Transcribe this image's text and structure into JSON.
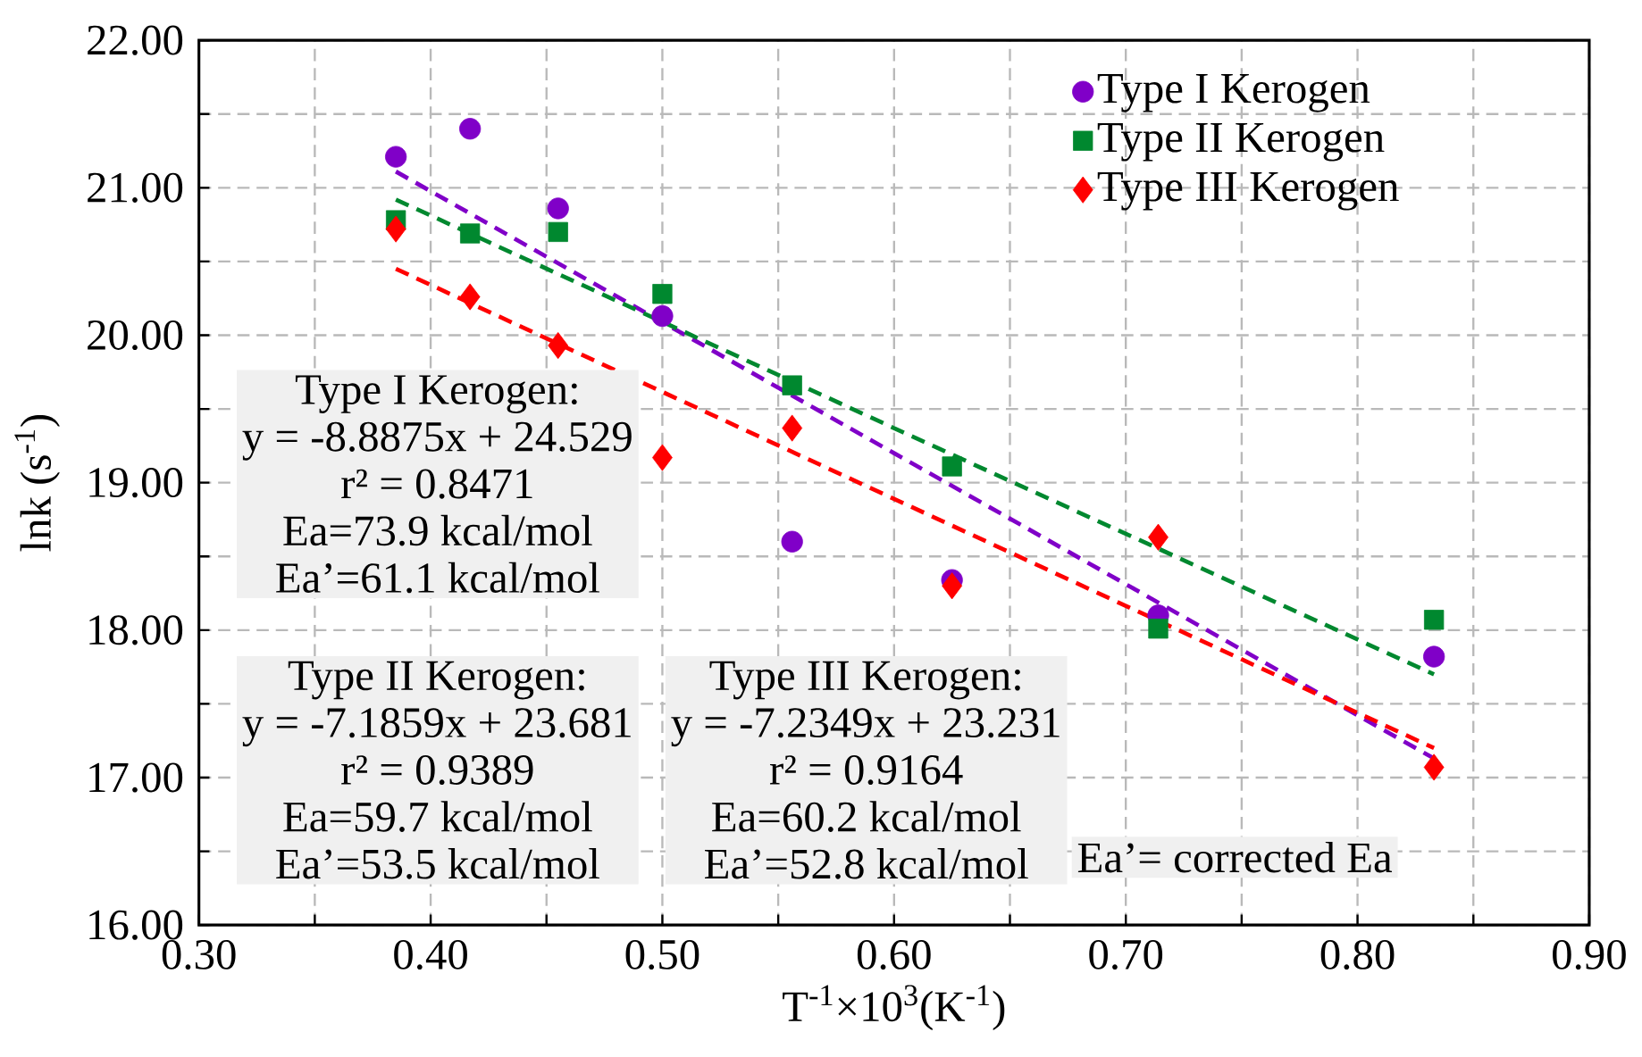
{
  "chart_data": {
    "type": "scatter",
    "xlabel": "T$^{-1}$×10$^{3}$(K$^{-1}$)",
    "ylabel": "lnk (s$^{-1}$)",
    "xlim": [
      0.3,
      0.9
    ],
    "ylim": [
      16,
      22
    ],
    "xticks": [
      {
        "value": 0.3,
        "label": "0.30"
      },
      {
        "value": 0.35,
        "label": null
      },
      {
        "value": 0.4,
        "label": "0.40"
      },
      {
        "value": 0.45,
        "label": null
      },
      {
        "value": 0.5,
        "label": "0.50"
      },
      {
        "value": 0.55,
        "label": null
      },
      {
        "value": 0.6,
        "label": "0.60"
      },
      {
        "value": 0.65,
        "label": null
      },
      {
        "value": 0.7,
        "label": "0.70"
      },
      {
        "value": 0.75,
        "label": null
      },
      {
        "value": 0.8,
        "label": "0.80"
      },
      {
        "value": 0.85,
        "label": null
      },
      {
        "value": 0.9,
        "label": "0.90"
      }
    ],
    "yticks": [
      {
        "value": 16,
        "label": "16.00"
      },
      {
        "value": 16.5,
        "label": null
      },
      {
        "value": 17,
        "label": "17.00"
      },
      {
        "value": 17.5,
        "label": null
      },
      {
        "value": 18,
        "label": "18.00"
      },
      {
        "value": 18.5,
        "label": null
      },
      {
        "value": 19,
        "label": "19.00"
      },
      {
        "value": 19.5,
        "label": null
      },
      {
        "value": 20,
        "label": "20.00"
      },
      {
        "value": 20.5,
        "label": null
      },
      {
        "value": 21,
        "label": "21.00"
      },
      {
        "value": 21.5,
        "label": null
      },
      {
        "value": 22,
        "label": "22.00"
      }
    ],
    "grid": true,
    "legend": "top right",
    "x": [
      0.385,
      0.417,
      0.455,
      0.5,
      0.556,
      0.625,
      0.714,
      0.833
    ],
    "series": [
      {
        "name": "Type I Kerogen",
        "color": "#8000c8",
        "marker": "circle",
        "values": [
          21.21,
          21.4,
          20.86,
          20.13,
          18.6,
          18.34,
          18.1,
          17.82
        ]
      },
      {
        "name": "Type II Kerogen",
        "color": "#00882f",
        "marker": "square",
        "values": [
          20.78,
          20.69,
          20.7,
          20.28,
          19.66,
          19.11,
          18.01,
          18.07
        ]
      },
      {
        "name": "Type III Kerogen",
        "color": "#ff0000",
        "marker": "diamond",
        "values": [
          20.72,
          20.26,
          19.93,
          19.17,
          19.37,
          18.3,
          18.63,
          17.07
        ]
      },
      {
        "type": "line",
        "color": "#8000c8",
        "line_style": "dashed",
        "marker": "none",
        "x": [
          0.385,
          0.6,
          0.833
        ],
        "values": [
          21.11,
          19.2,
          17.13
        ]
      },
      {
        "type": "line",
        "color": "#00882f",
        "line_style": "dashed",
        "marker": "none",
        "x": [
          0.385,
          0.6,
          0.833
        ],
        "values": [
          20.92,
          19.37,
          17.7
        ]
      },
      {
        "type": "line",
        "color": "#ff0000",
        "line_style": "dashed",
        "marker": "none",
        "x": [
          0.385,
          0.6,
          0.833
        ],
        "values": [
          20.45,
          18.89,
          17.2
        ]
      }
    ],
    "annotations": [
      "Type I Kerogen:",
      "y = -8.8875x + 24.529",
      "r² = 0.8471",
      "Ea=73.9 kcal/mol",
      "Ea’=61.1 kcal/mol",
      "Type II Kerogen:",
      "y = -7.1859x + 23.681",
      "r² = 0.9389",
      "Ea=59.7 kcal/mol",
      "Ea’=53.5 kcal/mol",
      "Type III Kerogen:",
      "y = -7.2349x + 23.231",
      "r² = 0.9164",
      "Ea=60.2 kcal/mol",
      "Ea’=52.8 kcal/mol",
      "Ea’= corrected Ea"
    ]
  }
}
